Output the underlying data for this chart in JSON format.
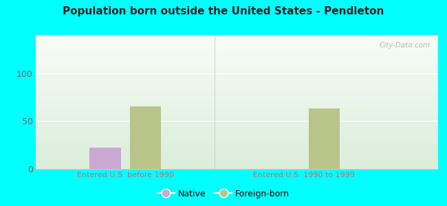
{
  "title": "Population born outside the United States - Pendleton",
  "groups": [
    "Entered U.S. before 1990",
    "Entered U.S. 1990 to 1999"
  ],
  "native_values": [
    22,
    0
  ],
  "foreign_values": [
    65,
    63
  ],
  "native_color": "#c9a8d4",
  "foreign_color": "#b8c48a",
  "outer_bg_color": "#00ffff",
  "ylim": [
    0,
    140
  ],
  "yticks": [
    0,
    50,
    100
  ],
  "bar_width": 0.35,
  "group_positions": [
    1,
    3
  ],
  "watermark": "City-Data.com",
  "legend_native": "Native",
  "legend_foreign": "Foreign-born",
  "title_fontsize": 11,
  "tick_fontsize": 9,
  "label_fontsize": 8,
  "xtick_color": "#aa7777",
  "ytick_color": "#666666"
}
